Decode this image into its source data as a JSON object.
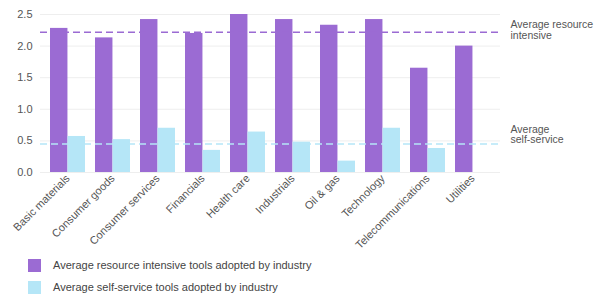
{
  "chart_data": {
    "type": "bar",
    "categories": [
      "Basic materials",
      "Consumer goods",
      "Consumer services",
      "Financials",
      "Health care",
      "Industrials",
      "Oil & gas",
      "Technology",
      "Telecommunications",
      "Utilities"
    ],
    "series": [
      {
        "name": "Average resource intensive tools adopted by industry",
        "color": "#9b6bd3",
        "values": [
          2.28,
          2.13,
          2.42,
          2.2,
          2.5,
          2.42,
          2.33,
          2.42,
          1.65,
          2.0
        ]
      },
      {
        "name": "Average self-service tools adopted by industry",
        "color": "#b5e6f7",
        "values": [
          0.57,
          0.52,
          0.7,
          0.35,
          0.64,
          0.48,
          0.18,
          0.7,
          0.38,
          0
        ]
      }
    ],
    "annotations": [
      {
        "label": "Average resource intensive",
        "value": 2.22,
        "color": "#9b6bd3",
        "line_style": "dashed"
      },
      {
        "label": "Average self-service",
        "value": 0.45,
        "color": "#b5e6f7",
        "line_style": "dashed"
      }
    ],
    "ylim": [
      0,
      2.5
    ],
    "yticks": [
      {
        "value": 0,
        "label": "0.0"
      },
      {
        "value": 0.5,
        "label": "0.5"
      },
      {
        "value": 1,
        "label": "1.0"
      },
      {
        "value": 1.5,
        "label": "1.5"
      },
      {
        "value": 2,
        "label": "2.0"
      },
      {
        "value": 2.5,
        "label": "2.5"
      }
    ],
    "grid": true
  }
}
